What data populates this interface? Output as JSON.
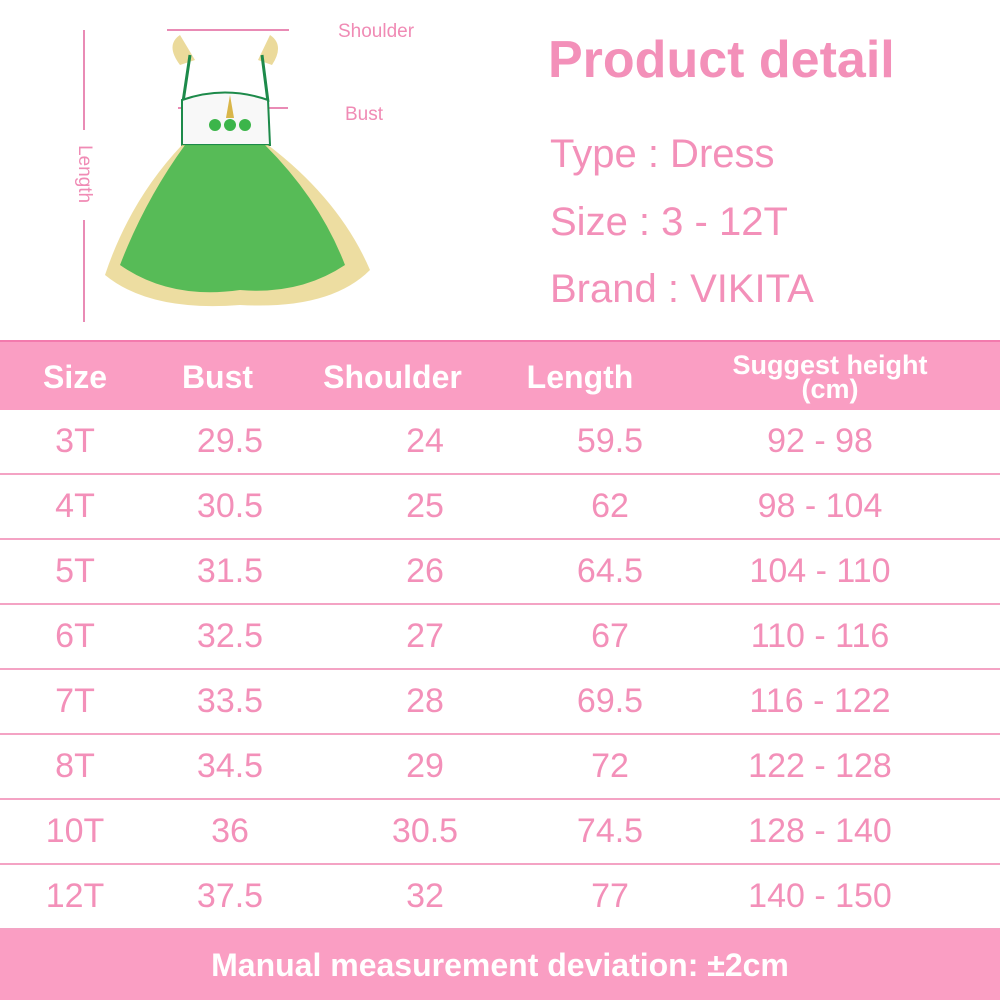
{
  "diagram": {
    "shoulder": "Shoulder",
    "bust": "Bust",
    "length": "Length"
  },
  "product": {
    "title": "Product detail",
    "type": "Type : Dress",
    "size": "Size : 3 - 12T",
    "brand": "Brand : VIKITA"
  },
  "table": {
    "headers": [
      "Size",
      "Bust",
      "Shoulder",
      "Length",
      "Suggest height",
      "(cm)"
    ],
    "rows": [
      [
        "3T",
        "29.5",
        "24",
        "59.5",
        "92 - 98"
      ],
      [
        "4T",
        "30.5",
        "25",
        "62",
        "98 - 104"
      ],
      [
        "5T",
        "31.5",
        "26",
        "64.5",
        "104 - 110"
      ],
      [
        "6T",
        "32.5",
        "27",
        "67",
        "110 - 116"
      ],
      [
        "7T",
        "33.5",
        "28",
        "69.5",
        "116 - 122"
      ],
      [
        "8T",
        "34.5",
        "29",
        "72",
        "122 - 128"
      ],
      [
        "10T",
        "36",
        "30.5",
        "74.5",
        "128 - 140"
      ],
      [
        "12T",
        "37.5",
        "32",
        "77",
        "140 - 150"
      ]
    ]
  },
  "footer": "Manual measurement deviation: ±2cm",
  "colors": {
    "header_bg": "#fa9ec3",
    "text_pink": "#f390b9",
    "dress_green": "#3cb54a",
    "dress_gold": "#e8d48a"
  }
}
